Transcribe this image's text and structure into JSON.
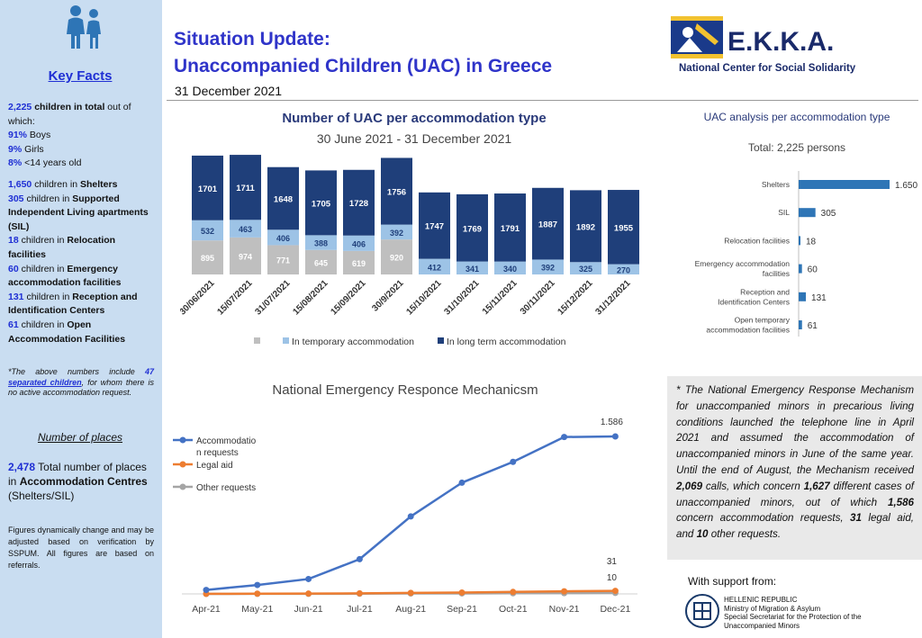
{
  "title": {
    "line1": "Situation Update:",
    "line2": "Unaccompanied Children (UAC) in Greece",
    "date": "31 December 2021"
  },
  "logo": {
    "text": "E.K.K.A.",
    "subtitle": "National Center for Social Solidarity"
  },
  "sidebar": {
    "heading": "Key Facts",
    "total": {
      "value": "2,225",
      "label": "children in total",
      "suffix": " out of which:"
    },
    "breakdown": [
      {
        "value": "91%",
        "label": " Boys"
      },
      {
        "value": "9%",
        "label": " Girls"
      },
      {
        "value": "8%",
        "label": " <14 years old"
      }
    ],
    "accommodation": [
      {
        "value": "1,650",
        "pre": " children in ",
        "label": "Shelters"
      },
      {
        "value": "305",
        "pre": " children in ",
        "label": "Supported Independent Living apartments (SIL)"
      },
      {
        "value": "18",
        "pre": " children in ",
        "label": "Relocation facilities"
      },
      {
        "value": "60",
        "pre": " children in ",
        "label": "Emergency accommodation facilities"
      },
      {
        "value": "131",
        "pre": " children in ",
        "label": "Reception and Identification Centers"
      },
      {
        "value": "61",
        "pre": " children in ",
        "label": "Open Accommodation Facilities"
      }
    ],
    "footnote": {
      "pre": "*The above numbers include ",
      "value": "47",
      "link": "separated children",
      "post": ", for whom there is no active accommodation request."
    },
    "places_heading": "Number of places",
    "places": {
      "value": "2,478",
      "pre": " Total number of places in ",
      "label": "Accommodation Centres",
      "post": " (Shelters/SIL)"
    },
    "disclaimer": "Figures dynamically change and may be adjusted based on verification by SSPUM. All figures are based on referrals."
  },
  "note": {
    "parts": [
      {
        "t": "* The National Emergency Response Mechanism for unaccompanied minors in precarious living conditions launched the telephone line in April 2021 and assumed the accommodation of unaccompanied minors in June of the same year. Until the end of August, the Mechanism received ",
        "b": false
      },
      {
        "t": "2,069",
        "b": true
      },
      {
        "t": " calls, which concern ",
        "b": false
      },
      {
        "t": "1,627",
        "b": true
      },
      {
        "t": " different cases of unaccompanied minors, out of which ",
        "b": false
      },
      {
        "t": "1,586",
        "b": true
      },
      {
        "t": " concern accommodation requests, ",
        "b": false
      },
      {
        "t": "31",
        "b": true
      },
      {
        "t": " legal aid, and ",
        "b": false
      },
      {
        "t": "10",
        "b": true
      },
      {
        "t": " other requests.",
        "b": false
      }
    ]
  },
  "support": {
    "label": "With support from:",
    "lines": [
      "HELLENIC REPUBLIC",
      "Ministry of Migration & Asylum",
      "Special Secretariat for the Protection of the",
      "Unaccompanied Minors"
    ]
  },
  "colors": {
    "accent": "#2f34c9",
    "long_term": "#1f3f7a",
    "temporary": "#9dc3e6",
    "other": "#bfbfbf",
    "line_accom": "#4472c4",
    "line_legal": "#ed7d31",
    "line_other": "#a5a5a5",
    "hbar": "#2e75b6"
  },
  "chart_data": [
    {
      "type": "bar",
      "stacked": true,
      "title": "Number of UAC per accommodation type",
      "subtitle": "30 June 2021 - 31 December 2021",
      "categories": [
        "30/06/2021",
        "15/07/2021",
        "31/07/2021",
        "15/08/2021",
        "15/09/2021",
        "30/9/2021",
        "15/10/2021",
        "31/10/2021",
        "15/11/2021",
        "30/11/2021",
        "15/12/2021",
        "31/12/2021"
      ],
      "series": [
        {
          "name": "",
          "values": [
            895,
            974,
            771,
            645,
            619,
            920,
            null,
            null,
            null,
            null,
            null,
            null
          ],
          "color": "#bfbfbf"
        },
        {
          "name": "In temporary accommodation",
          "values": [
            532,
            463,
            406,
            388,
            406,
            392,
            412,
            341,
            340,
            392,
            325,
            270
          ],
          "color": "#9dc3e6"
        },
        {
          "name": "In long term accommodation",
          "values": [
            1701,
            1711,
            1648,
            1705,
            1728,
            1756,
            1747,
            1769,
            1791,
            1887,
            1892,
            1955
          ],
          "color": "#1f3f7a"
        }
      ],
      "legend": "bottom"
    },
    {
      "type": "bar",
      "orientation": "horizontal",
      "title": "UAC analysis per accommodation type",
      "subtitle": "Total: 2,225 persons",
      "categories": [
        "Shelters",
        "SIL",
        "Relocation facilities",
        "Emergency accommodation facilities",
        "Reception and Identification Centers",
        "Open temporary accommodation facilities"
      ],
      "values": [
        1650,
        305,
        18,
        60,
        131,
        61
      ],
      "value_labels": [
        "1.650",
        "305",
        "18",
        "60",
        "131",
        "61"
      ],
      "color": "#2e75b6"
    },
    {
      "type": "line",
      "title": "National Emergency Responce Mechanicsm",
      "x": [
        "Apr-21",
        "May-21",
        "Jun-21",
        "Jul-21",
        "Aug-21",
        "Sep-21",
        "Oct-21",
        "Nov-21",
        "Dec-21"
      ],
      "series": [
        {
          "name": "Accommodation requests",
          "values": [
            40,
            90,
            150,
            350,
            780,
            1120,
            1330,
            1580,
            1586
          ],
          "end_label": "1.586",
          "color": "#4472c4"
        },
        {
          "name": "Legal aid",
          "values": [
            1,
            2,
            3,
            6,
            10,
            14,
            20,
            26,
            31
          ],
          "end_label": "31",
          "color": "#ed7d31"
        },
        {
          "name": "Other requests",
          "values": [
            0,
            1,
            1,
            2,
            4,
            5,
            7,
            8,
            10
          ],
          "end_label": "10",
          "color": "#a5a5a5"
        }
      ],
      "ylim": [
        0,
        1700
      ],
      "legend": "left"
    }
  ]
}
